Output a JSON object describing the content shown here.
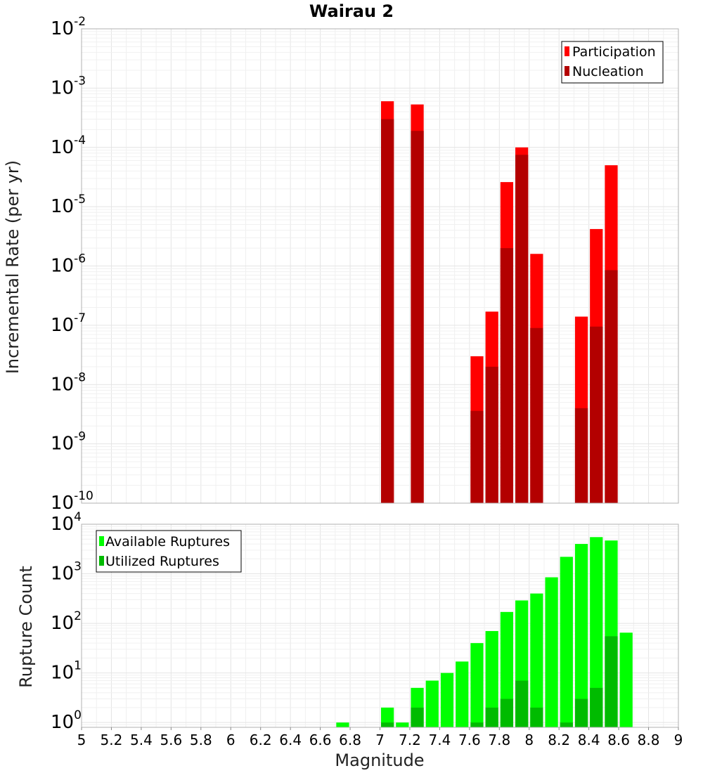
{
  "chart_data": [
    {
      "type": "bar",
      "title": "Wairau 2",
      "ylabel": "Incremental Rate (per yr)",
      "xlabel": "",
      "y_scale": "log",
      "ylim": [
        1e-10,
        0.01
      ],
      "xlim": [
        5,
        9
      ],
      "bin_width": 0.1,
      "grid": true,
      "legend_position": "top-right",
      "x": [
        7.05,
        7.25,
        7.65,
        7.75,
        7.85,
        7.95,
        8.05,
        8.35,
        8.45,
        8.55
      ],
      "series": [
        {
          "name": "Participation",
          "color": "#ff0000",
          "values": [
            0.0006,
            0.00053,
            3e-08,
            1.7e-07,
            2.6e-05,
            0.0001,
            1.6e-06,
            1.4e-07,
            4.2e-06,
            5e-05
          ]
        },
        {
          "name": "Nucleation",
          "color": "#b30000",
          "values": [
            0.0003,
            0.00019,
            3.6e-09,
            2e-08,
            2e-06,
            7.5e-05,
            9e-08,
            4e-09,
            9.5e-08,
            8.5e-07
          ]
        }
      ]
    },
    {
      "type": "bar",
      "title": "",
      "ylabel": "Rupture Count",
      "xlabel": "Magnitude",
      "y_scale": "log",
      "ylim": [
        0.8,
        10000
      ],
      "xlim": [
        5,
        9
      ],
      "bin_width": 0.1,
      "grid": true,
      "legend_position": "top-left",
      "x_ticks": [
        "5",
        "5.2",
        "5.4",
        "5.6",
        "5.8",
        "6",
        "6.2",
        "6.4",
        "6.6",
        "6.8",
        "7",
        "7.2",
        "7.4",
        "7.6",
        "7.8",
        "8",
        "8.2",
        "8.4",
        "8.6",
        "8.8",
        "9"
      ],
      "x": [
        6.75,
        7.05,
        7.15,
        7.25,
        7.35,
        7.45,
        7.55,
        7.65,
        7.75,
        7.85,
        7.95,
        8.05,
        8.15,
        8.25,
        8.35,
        8.45,
        8.55,
        8.65
      ],
      "series": [
        {
          "name": "Available Ruptures",
          "color": "#00ff00",
          "values": [
            1,
            2,
            1,
            5,
            7,
            10,
            17,
            40,
            70,
            170,
            290,
            400,
            850,
            2200,
            4000,
            5500,
            4700,
            65
          ]
        },
        {
          "name": "Utilized Ruptures",
          "color": "#00bb00",
          "values": [
            0,
            1,
            0,
            2,
            0,
            0,
            0,
            1,
            2,
            3,
            7,
            2,
            0,
            1,
            3,
            5,
            55,
            0
          ]
        }
      ]
    }
  ]
}
